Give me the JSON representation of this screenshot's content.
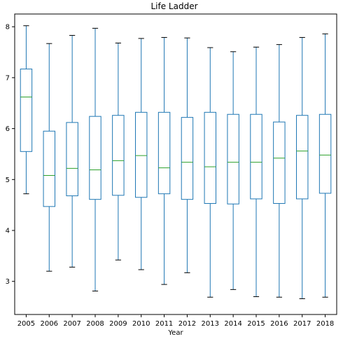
{
  "chart_data": {
    "type": "box",
    "title": "Life Ladder",
    "xlabel": "Year",
    "ylabel": "",
    "ylim": [
      2.35,
      8.25
    ],
    "yticks": [
      3,
      4,
      5,
      6,
      7,
      8
    ],
    "grid": false,
    "colors": {
      "box": "#1f77b4",
      "median": "#2ca02c",
      "axis": "#000000"
    },
    "categories": [
      "2005",
      "2006",
      "2007",
      "2008",
      "2009",
      "2010",
      "2011",
      "2012",
      "2013",
      "2014",
      "2015",
      "2016",
      "2017",
      "2018"
    ],
    "boxes": [
      {
        "min": 4.72,
        "q1": 5.55,
        "median": 6.62,
        "q3": 7.17,
        "max": 8.02
      },
      {
        "min": 3.2,
        "q1": 4.47,
        "median": 5.08,
        "q3": 5.95,
        "max": 7.67
      },
      {
        "min": 3.28,
        "q1": 4.68,
        "median": 5.22,
        "q3": 6.12,
        "max": 7.83
      },
      {
        "min": 2.81,
        "q1": 4.61,
        "median": 5.19,
        "q3": 6.24,
        "max": 7.97
      },
      {
        "min": 3.42,
        "q1": 4.69,
        "median": 5.37,
        "q3": 6.26,
        "max": 7.68
      },
      {
        "min": 3.23,
        "q1": 4.65,
        "median": 5.47,
        "q3": 6.32,
        "max": 7.77
      },
      {
        "min": 2.94,
        "q1": 4.72,
        "median": 5.23,
        "q3": 6.32,
        "max": 7.79
      },
      {
        "min": 3.17,
        "q1": 4.61,
        "median": 5.34,
        "q3": 6.22,
        "max": 7.78
      },
      {
        "min": 2.69,
        "q1": 4.53,
        "median": 5.25,
        "q3": 6.32,
        "max": 7.59
      },
      {
        "min": 2.84,
        "q1": 4.52,
        "median": 5.34,
        "q3": 6.28,
        "max": 7.51
      },
      {
        "min": 2.7,
        "q1": 4.62,
        "median": 5.34,
        "q3": 6.28,
        "max": 7.6
      },
      {
        "min": 2.69,
        "q1": 4.53,
        "median": 5.42,
        "q3": 6.13,
        "max": 7.65
      },
      {
        "min": 2.66,
        "q1": 4.62,
        "median": 5.56,
        "q3": 6.26,
        "max": 7.79
      },
      {
        "min": 2.69,
        "q1": 4.73,
        "median": 5.48,
        "q3": 6.28,
        "max": 7.86
      }
    ]
  }
}
